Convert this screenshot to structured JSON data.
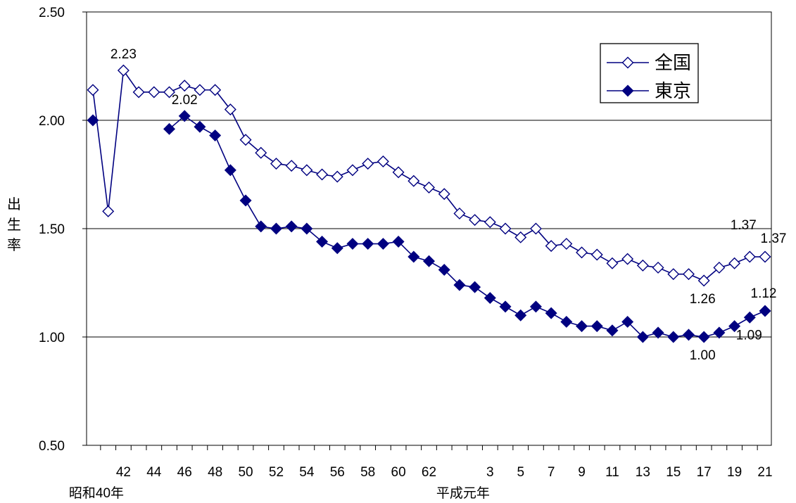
{
  "chart_data": {
    "type": "line",
    "ylabel": "出生率",
    "ylim": [
      0.5,
      2.5
    ],
    "yticks": [
      "0.50",
      "1.00",
      "1.50",
      "2.00",
      "2.50"
    ],
    "grid": true,
    "legend_position": "top-right",
    "x": [
      "昭和40年",
      "41",
      "42",
      "43",
      "44",
      "45",
      "46",
      "47",
      "48",
      "49",
      "50",
      "51",
      "52",
      "53",
      "54",
      "55",
      "56",
      "57",
      "58",
      "59",
      "60",
      "61",
      "62",
      "63",
      "平成元年",
      "2",
      "3",
      "4",
      "5",
      "6",
      "7",
      "8",
      "9",
      "10",
      "11",
      "12",
      "13",
      "14",
      "15",
      "16",
      "17",
      "18",
      "19",
      "20",
      "21"
    ],
    "x_tick_labels": [
      {
        "index": 2,
        "label": "42"
      },
      {
        "index": 4,
        "label": "44"
      },
      {
        "index": 6,
        "label": "46"
      },
      {
        "index": 8,
        "label": "48"
      },
      {
        "index": 10,
        "label": "50"
      },
      {
        "index": 12,
        "label": "52"
      },
      {
        "index": 14,
        "label": "54"
      },
      {
        "index": 16,
        "label": "56"
      },
      {
        "index": 18,
        "label": "58"
      },
      {
        "index": 20,
        "label": "60"
      },
      {
        "index": 22,
        "label": "62"
      },
      {
        "index": 26,
        "label": "3"
      },
      {
        "index": 28,
        "label": "5"
      },
      {
        "index": 30,
        "label": "7"
      },
      {
        "index": 32,
        "label": "9"
      },
      {
        "index": 34,
        "label": "11"
      },
      {
        "index": 36,
        "label": "13"
      },
      {
        "index": 38,
        "label": "15"
      },
      {
        "index": 40,
        "label": "17"
      },
      {
        "index": 42,
        "label": "19"
      },
      {
        "index": 44,
        "label": "21"
      }
    ],
    "era_labels": [
      {
        "index": 0,
        "label": "昭和40年"
      },
      {
        "index": 24,
        "label": "平成元年"
      }
    ],
    "series": [
      {
        "name": "全国",
        "marker": "diamond-open",
        "color": "#000080",
        "values": [
          2.14,
          1.58,
          2.23,
          2.13,
          2.13,
          2.13,
          2.16,
          2.14,
          2.14,
          2.05,
          1.91,
          1.85,
          1.8,
          1.79,
          1.77,
          1.75,
          1.74,
          1.77,
          1.8,
          1.81,
          1.76,
          1.72,
          1.69,
          1.66,
          1.57,
          1.54,
          1.53,
          1.5,
          1.46,
          1.5,
          1.42,
          1.43,
          1.39,
          1.38,
          1.34,
          1.36,
          1.33,
          1.32,
          1.29,
          1.29,
          1.26,
          1.32,
          1.34,
          1.37,
          1.37
        ]
      },
      {
        "name": "東京",
        "marker": "diamond-filled",
        "color": "#000080",
        "values": [
          2.0,
          null,
          null,
          null,
          null,
          1.96,
          2.02,
          1.97,
          1.93,
          1.77,
          1.63,
          1.51,
          1.5,
          1.51,
          1.5,
          1.44,
          1.41,
          1.43,
          1.43,
          1.43,
          1.44,
          1.37,
          1.35,
          1.31,
          1.24,
          1.23,
          1.18,
          1.14,
          1.1,
          1.14,
          1.11,
          1.07,
          1.05,
          1.05,
          1.03,
          1.07,
          1.0,
          1.02,
          1.0,
          1.01,
          1.0,
          1.02,
          1.05,
          1.09,
          1.12
        ]
      }
    ],
    "annotations": [
      {
        "series": 0,
        "index": 2,
        "text": "2.23",
        "place": "above"
      },
      {
        "series": 1,
        "index": 6,
        "text": "2.02",
        "place": "above"
      },
      {
        "series": 0,
        "index": 40,
        "text": "1.26",
        "place": "below"
      },
      {
        "series": 0,
        "index": 43,
        "text": "1.37",
        "place": "above"
      },
      {
        "series": 0,
        "index": 44,
        "text": "1.37",
        "place": "above-right"
      },
      {
        "series": 1,
        "index": 44,
        "text": "1.12",
        "place": "above"
      },
      {
        "series": 1,
        "index": 43,
        "text": "1.09",
        "place": "below"
      },
      {
        "series": 1,
        "index": 40,
        "text": "1.00",
        "place": "below"
      }
    ]
  }
}
